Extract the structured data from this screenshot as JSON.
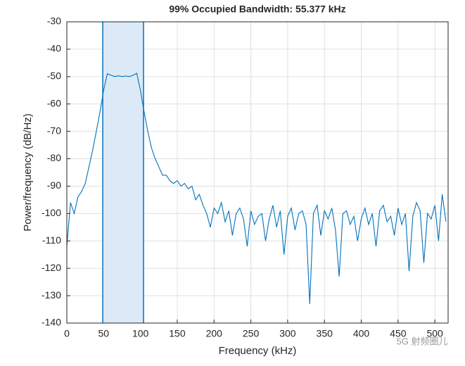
{
  "chart_data": {
    "type": "line",
    "title": "99% Occupied Bandwidth: 55.377 kHz",
    "xlabel": "Frequency (kHz)",
    "ylabel": "Power/frequency (dB/Hz)",
    "watermark": "5G 射频圈儿",
    "xlim": [
      0,
      518
    ],
    "ylim": [
      -140,
      -30
    ],
    "xticks": [
      0,
      50,
      100,
      150,
      200,
      250,
      300,
      350,
      400,
      450,
      500
    ],
    "yticks": [
      -140,
      -130,
      -120,
      -110,
      -100,
      -90,
      -80,
      -70,
      -60,
      -50,
      -40,
      -30
    ],
    "grid": true,
    "band": [
      48.8,
      104.18
    ],
    "band_color": "#dce9f6",
    "series": [
      {
        "color": "#0072bd",
        "x": [
          0,
          5,
          10,
          15,
          20,
          25,
          30,
          35,
          40,
          45,
          50,
          55,
          60,
          65,
          70,
          75,
          80,
          85,
          90,
          95,
          100,
          105,
          110,
          115,
          120,
          125,
          130,
          135,
          140,
          145,
          150,
          155,
          160,
          165,
          170,
          175,
          180,
          185,
          190,
          195,
          200,
          205,
          210,
          215,
          220,
          225,
          230,
          235,
          240,
          245,
          250,
          255,
          260,
          265,
          270,
          275,
          280,
          285,
          290,
          295,
          300,
          305,
          310,
          315,
          320,
          325,
          330,
          335,
          340,
          345,
          350,
          355,
          360,
          365,
          370,
          375,
          380,
          385,
          390,
          395,
          400,
          405,
          410,
          415,
          420,
          425,
          430,
          435,
          440,
          445,
          450,
          455,
          460,
          465,
          470,
          475,
          480,
          485,
          490,
          495,
          500,
          505,
          510,
          515
        ],
        "values": [
          -112,
          -96,
          -100,
          -94,
          -92,
          -89,
          -83,
          -77,
          -70,
          -63,
          -55,
          -49,
          -49.5,
          -50,
          -49.7,
          -50,
          -49.8,
          -50,
          -49.5,
          -48.8,
          -55,
          -63,
          -70,
          -76,
          -80,
          -83,
          -86,
          -86,
          -88,
          -89,
          -88,
          -90,
          -89,
          -91,
          -90,
          -95,
          -93,
          -97,
          -100,
          -105,
          -98,
          -100,
          -96,
          -103,
          -99,
          -108,
          -100,
          -98,
          -102,
          -112,
          -99,
          -104,
          -101,
          -100,
          -110,
          -102,
          -97,
          -105,
          -99,
          -115,
          -101,
          -98,
          -106,
          -100,
          -99,
          -104,
          -133,
          -100,
          -97,
          -108,
          -99,
          -102,
          -98,
          -106,
          -123,
          -100,
          -99,
          -104,
          -101,
          -110,
          -102,
          -98,
          -104,
          -100,
          -112,
          -99,
          -97,
          -103,
          -101,
          -108,
          -98,
          -104,
          -100,
          -121,
          -101,
          -96,
          -99,
          -118,
          -100,
          -102,
          -97,
          -110,
          -93,
          -103
        ]
      }
    ]
  }
}
